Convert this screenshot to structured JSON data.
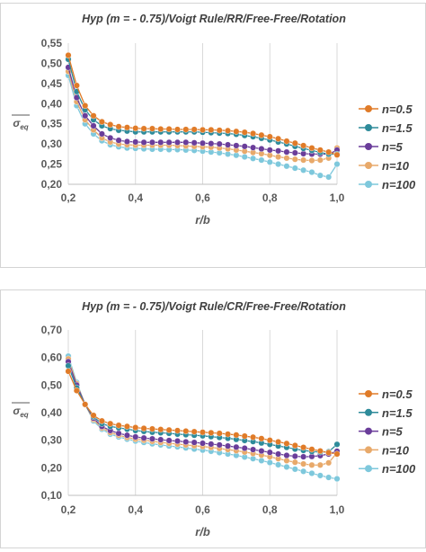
{
  "chart_data": [
    {
      "type": "line",
      "title": "Hyp (m = - 0.75)/Voigt Rule/RR/Free-Free/Rotation",
      "xlabel": "r/b",
      "ylabel": "σeq",
      "xlim": [
        0.2,
        1.0
      ],
      "ylim": [
        0.2,
        0.55
      ],
      "xticks": [
        "0,2",
        "0,4",
        "0,6",
        "0,8",
        "1,0"
      ],
      "yticks": [
        "0,20",
        "0,25",
        "0,30",
        "0,35",
        "0,40",
        "0,45",
        "0,50",
        "0,55"
      ],
      "grid": "vertical",
      "legend_position": "right",
      "x": [
        0.2,
        0.225,
        0.25,
        0.275,
        0.3,
        0.325,
        0.35,
        0.375,
        0.4,
        0.425,
        0.45,
        0.475,
        0.5,
        0.525,
        0.55,
        0.575,
        0.6,
        0.625,
        0.65,
        0.675,
        0.7,
        0.725,
        0.75,
        0.775,
        0.8,
        0.825,
        0.85,
        0.875,
        0.9,
        0.925,
        0.95,
        0.975,
        1.0
      ],
      "series": [
        {
          "name": "n=0.5",
          "color": "#e07b28",
          "values": [
            0.52,
            0.445,
            0.395,
            0.37,
            0.355,
            0.348,
            0.343,
            0.341,
            0.339,
            0.338,
            0.338,
            0.337,
            0.337,
            0.336,
            0.336,
            0.336,
            0.335,
            0.335,
            0.334,
            0.333,
            0.331,
            0.329,
            0.326,
            0.322,
            0.318,
            0.313,
            0.307,
            0.302,
            0.296,
            0.29,
            0.285,
            0.28,
            0.273
          ]
        },
        {
          "name": "n=1.5",
          "color": "#2e8b9a",
          "values": [
            0.51,
            0.43,
            0.385,
            0.36,
            0.345,
            0.338,
            0.334,
            0.332,
            0.33,
            0.33,
            0.33,
            0.33,
            0.33,
            0.33,
            0.33,
            0.33,
            0.329,
            0.328,
            0.327,
            0.326,
            0.324,
            0.321,
            0.318,
            0.314,
            0.31,
            0.305,
            0.3,
            0.294,
            0.289,
            0.284,
            0.279,
            0.275,
            0.275
          ]
        },
        {
          "name": "n=5",
          "color": "#6a3d9a",
          "values": [
            0.49,
            0.415,
            0.37,
            0.345,
            0.325,
            0.315,
            0.309,
            0.306,
            0.305,
            0.304,
            0.304,
            0.304,
            0.304,
            0.304,
            0.304,
            0.303,
            0.302,
            0.301,
            0.3,
            0.298,
            0.296,
            0.294,
            0.291,
            0.288,
            0.285,
            0.283,
            0.28,
            0.278,
            0.276,
            0.275,
            0.275,
            0.275,
            0.285
          ]
        },
        {
          "name": "n=10",
          "color": "#e8a96a",
          "values": [
            0.48,
            0.405,
            0.36,
            0.335,
            0.315,
            0.305,
            0.3,
            0.298,
            0.297,
            0.297,
            0.297,
            0.297,
            0.297,
            0.296,
            0.295,
            0.294,
            0.293,
            0.292,
            0.29,
            0.288,
            0.285,
            0.282,
            0.279,
            0.276,
            0.272,
            0.268,
            0.265,
            0.262,
            0.26,
            0.259,
            0.26,
            0.265,
            0.29
          ]
        },
        {
          "name": "n=100",
          "color": "#7ec8dc",
          "values": [
            0.47,
            0.395,
            0.35,
            0.325,
            0.308,
            0.298,
            0.293,
            0.29,
            0.289,
            0.288,
            0.287,
            0.287,
            0.286,
            0.286,
            0.285,
            0.284,
            0.282,
            0.28,
            0.278,
            0.275,
            0.272,
            0.268,
            0.264,
            0.26,
            0.255,
            0.25,
            0.245,
            0.24,
            0.235,
            0.23,
            0.222,
            0.218,
            0.25
          ]
        }
      ]
    },
    {
      "type": "line",
      "title": "Hyp (m = - 0.75)/Voigt Rule/CR/Free-Free/Rotation",
      "xlabel": "r/b",
      "ylabel": "σeq",
      "xlim": [
        0.2,
        1.0
      ],
      "ylim": [
        0.1,
        0.7
      ],
      "xticks": [
        "0,2",
        "0,4",
        "0,6",
        "0,8",
        "1,0"
      ],
      "yticks": [
        "0,10",
        "0,20",
        "0,30",
        "0,40",
        "0,50",
        "0,60",
        "0,70"
      ],
      "grid": "vertical",
      "legend_position": "right",
      "x": [
        0.2,
        0.225,
        0.25,
        0.275,
        0.3,
        0.325,
        0.35,
        0.375,
        0.4,
        0.425,
        0.45,
        0.475,
        0.5,
        0.525,
        0.55,
        0.575,
        0.6,
        0.625,
        0.65,
        0.675,
        0.7,
        0.725,
        0.75,
        0.775,
        0.8,
        0.825,
        0.85,
        0.875,
        0.9,
        0.925,
        0.95,
        0.975,
        1.0
      ],
      "series": [
        {
          "name": "n=0.5",
          "color": "#e07b28",
          "values": [
            0.55,
            0.48,
            0.43,
            0.39,
            0.37,
            0.36,
            0.354,
            0.35,
            0.346,
            0.343,
            0.341,
            0.339,
            0.337,
            0.335,
            0.333,
            0.331,
            0.329,
            0.327,
            0.325,
            0.322,
            0.319,
            0.315,
            0.311,
            0.306,
            0.3,
            0.294,
            0.288,
            0.281,
            0.274,
            0.267,
            0.261,
            0.255,
            0.25
          ]
        },
        {
          "name": "n=1.5",
          "color": "#2e8b9a",
          "values": [
            0.57,
            0.49,
            0.43,
            0.385,
            0.36,
            0.35,
            0.345,
            0.34,
            0.335,
            0.332,
            0.329,
            0.327,
            0.325,
            0.322,
            0.32,
            0.318,
            0.316,
            0.313,
            0.31,
            0.307,
            0.303,
            0.299,
            0.295,
            0.29,
            0.285,
            0.279,
            0.274,
            0.268,
            0.263,
            0.259,
            0.257,
            0.258,
            0.285
          ]
        },
        {
          "name": "n=5",
          "color": "#6a3d9a",
          "values": [
            0.585,
            0.5,
            0.43,
            0.38,
            0.35,
            0.335,
            0.325,
            0.318,
            0.312,
            0.308,
            0.305,
            0.302,
            0.299,
            0.297,
            0.294,
            0.292,
            0.289,
            0.286,
            0.283,
            0.279,
            0.275,
            0.271,
            0.266,
            0.261,
            0.256,
            0.25,
            0.245,
            0.242,
            0.24,
            0.241,
            0.244,
            0.25,
            0.26
          ]
        },
        {
          "name": "n=10",
          "color": "#e8a96a",
          "values": [
            0.595,
            0.505,
            0.43,
            0.375,
            0.345,
            0.328,
            0.318,
            0.31,
            0.304,
            0.3,
            0.296,
            0.292,
            0.289,
            0.286,
            0.283,
            0.28,
            0.277,
            0.274,
            0.27,
            0.266,
            0.262,
            0.257,
            0.252,
            0.246,
            0.24,
            0.233,
            0.226,
            0.22,
            0.214,
            0.21,
            0.21,
            0.218,
            0.255
          ]
        },
        {
          "name": "n=100",
          "color": "#7ec8dc",
          "values": [
            0.605,
            0.51,
            0.43,
            0.37,
            0.34,
            0.322,
            0.312,
            0.304,
            0.297,
            0.292,
            0.287,
            0.283,
            0.279,
            0.276,
            0.272,
            0.268,
            0.264,
            0.26,
            0.255,
            0.25,
            0.245,
            0.239,
            0.233,
            0.226,
            0.219,
            0.211,
            0.203,
            0.195,
            0.187,
            0.18,
            0.172,
            0.165,
            0.16
          ]
        }
      ]
    }
  ]
}
